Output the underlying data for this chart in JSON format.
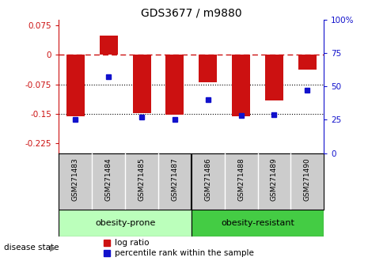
{
  "title": "GDS3677 / m9880",
  "samples": [
    "GSM271483",
    "GSM271484",
    "GSM271485",
    "GSM271487",
    "GSM271486",
    "GSM271488",
    "GSM271489",
    "GSM271490"
  ],
  "log_ratios": [
    -0.155,
    0.05,
    -0.148,
    -0.152,
    -0.07,
    -0.155,
    -0.115,
    -0.038
  ],
  "percentile_ranks": [
    25,
    57,
    27,
    25,
    40,
    28,
    29,
    47
  ],
  "ylim_left": [
    -0.25,
    0.09
  ],
  "ylim_right": [
    0,
    100
  ],
  "yticks_left": [
    0.075,
    0,
    -0.075,
    -0.15,
    -0.225
  ],
  "yticks_right": [
    100,
    75,
    50,
    25,
    0
  ],
  "bar_color": "#cc1111",
  "dot_color": "#1111cc",
  "hline0_color": "#cc1111",
  "hline_dot_color": "#000000",
  "group1_label": "obesity-prone",
  "group2_label": "obesity-resistant",
  "group1_split": 4,
  "group1_color": "#bbffbb",
  "group2_color": "#44cc44",
  "legend_log": "log ratio",
  "legend_pct": "percentile rank within the sample",
  "disease_state_label": "disease state",
  "sample_bg_color": "#cccccc",
  "title_fontsize": 10,
  "tick_fontsize": 7.5,
  "sample_fontsize": 6.5,
  "group_fontsize": 8,
  "legend_fontsize": 7.5
}
